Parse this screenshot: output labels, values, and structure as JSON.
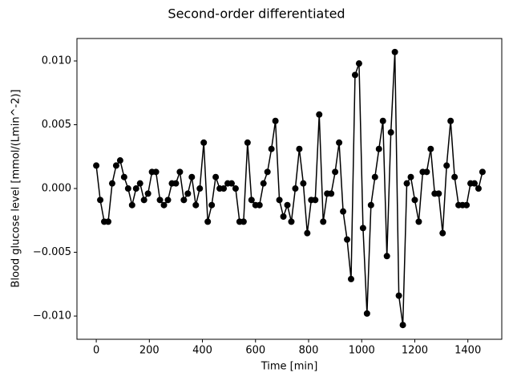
{
  "chart_data": {
    "type": "line",
    "title": "Second-order differentiated",
    "x_label": "Time [min]",
    "y_label": "Blood glucose level [mmol/(Lmin^-2)]",
    "x": [
      0,
      15,
      30,
      45,
      60,
      75,
      90,
      105,
      120,
      135,
      150,
      165,
      180,
      195,
      210,
      225,
      240,
      255,
      270,
      285,
      300,
      315,
      330,
      345,
      360,
      375,
      390,
      405,
      420,
      435,
      450,
      465,
      480,
      495,
      510,
      525,
      540,
      555,
      570,
      585,
      600,
      615,
      630,
      645,
      660,
      675,
      690,
      705,
      720,
      735,
      750,
      765,
      780,
      795,
      810,
      825,
      840,
      855,
      870,
      885,
      900,
      915,
      930,
      945,
      960,
      975,
      990,
      1005,
      1020,
      1035,
      1050,
      1065,
      1080,
      1095,
      1110,
      1125,
      1140,
      1155,
      1170,
      1185,
      1200,
      1215,
      1230,
      1245,
      1260,
      1275,
      1290,
      1305,
      1320,
      1335,
      1350,
      1365,
      1380,
      1395,
      1410,
      1425,
      1440,
      1455
    ],
    "series": [
      {
        "color": "#000000",
        "marker": "o",
        "values": [
          0.0018,
          -0.0009,
          -0.0026,
          -0.0026,
          0.0004,
          0.0018,
          0.0022,
          0.0009,
          0.0,
          -0.0013,
          0.0,
          0.0004,
          -0.0009,
          -0.0004,
          0.0013,
          0.0013,
          -0.0009,
          -0.0013,
          -0.0009,
          0.0004,
          0.0004,
          0.0013,
          -0.0009,
          -0.0004,
          0.0009,
          -0.0013,
          0.0,
          0.0036,
          -0.0026,
          -0.0013,
          0.0009,
          0.0,
          0.0,
          0.0004,
          0.0004,
          0.0,
          -0.0026,
          -0.0026,
          0.0036,
          -0.0009,
          -0.0013,
          -0.0013,
          0.0004,
          0.0013,
          0.0031,
          0.0053,
          -0.0009,
          -0.0022,
          -0.0013,
          -0.0026,
          0.0,
          0.0031,
          0.0004,
          -0.0035,
          -0.0009,
          -0.0009,
          0.0058,
          -0.0026,
          -0.0004,
          -0.0004,
          0.0013,
          0.0036,
          -0.0018,
          -0.004,
          -0.0071,
          0.0089,
          0.0098,
          -0.0031,
          -0.0098,
          -0.0013,
          0.0009,
          0.0031,
          0.0053,
          -0.0053,
          0.0044,
          0.0107,
          -0.0084,
          -0.0107,
          0.0004,
          0.0009,
          -0.0009,
          -0.0026,
          0.0013,
          0.0013,
          0.0031,
          -0.0004,
          -0.0004,
          -0.0035,
          0.0018,
          0.0053,
          0.0009,
          -0.0013,
          -0.0013,
          -0.0013,
          0.0004,
          0.0004,
          0.0,
          0.0013
        ]
      }
    ],
    "xlim": [
      -72.75,
      1527.75
    ],
    "ylim": [
      -0.01182,
      0.01176
    ],
    "xticks": [
      0,
      200,
      400,
      600,
      800,
      1000,
      1200,
      1400
    ],
    "yticks": [
      {
        "value": -0.01,
        "label": "−0.010"
      },
      {
        "value": -0.005,
        "label": "−0.005"
      },
      {
        "value": 0,
        "label": "0.000"
      },
      {
        "value": 0.005,
        "label": "0.005"
      },
      {
        "value": 0.01,
        "label": "0.010"
      }
    ],
    "grid": false
  }
}
